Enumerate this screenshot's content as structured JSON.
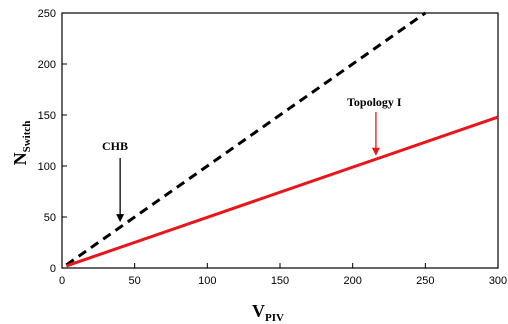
{
  "chart_data": {
    "type": "line",
    "title": "",
    "xlabel": {
      "main": "V",
      "sub": "PIV"
    },
    "ylabel": {
      "main": "N",
      "sub": "Switch"
    },
    "xlim": [
      0,
      300
    ],
    "ylim": [
      0,
      250
    ],
    "xticks": [
      0,
      50,
      100,
      150,
      200,
      250,
      300
    ],
    "yticks": [
      0,
      50,
      100,
      150,
      200,
      250
    ],
    "grid": false,
    "series": [
      {
        "name": "CHB",
        "color": "#000000",
        "style": "dashed",
        "points": [
          [
            3,
            3
          ],
          [
            250,
            250
          ]
        ]
      },
      {
        "name": "Topology I",
        "color": "#e8161a",
        "style": "solid",
        "points": [
          [
            3,
            2
          ],
          [
            300,
            148
          ]
        ]
      }
    ],
    "annotations": [
      {
        "text": "CHB",
        "color": "#000000",
        "arrow_to": [
          40,
          45
        ]
      },
      {
        "text": "Topology I",
        "color": "#e8161a",
        "arrow_to": [
          216,
          110
        ]
      }
    ]
  }
}
